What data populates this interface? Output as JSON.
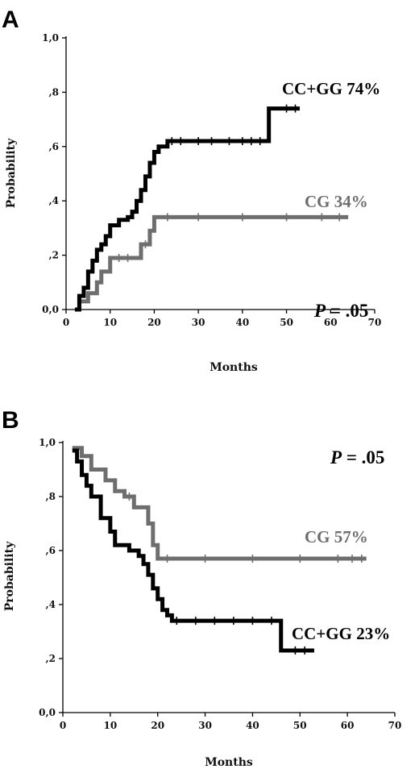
{
  "chart_data": [
    {
      "panel": "A",
      "type": "line",
      "xlabel": "Months",
      "ylabel": "Probability",
      "xlim": [
        0,
        70
      ],
      "ylim": [
        0,
        1.0
      ],
      "x_ticks": [
        "0",
        "10",
        "20",
        "30",
        "40",
        "50",
        "60",
        "70"
      ],
      "y_ticks": [
        "0,0",
        ",2",
        ",4",
        ",6",
        ",8",
        "1,0"
      ],
      "annotation": {
        "p_symbol": "P",
        "p_value": " = .05"
      },
      "series": [
        {
          "name": "CC+GG 74%",
          "color": "#000000",
          "x": [
            2,
            3,
            4,
            5,
            6,
            7,
            8,
            9,
            10,
            12,
            14,
            15,
            16,
            17,
            18,
            19,
            20,
            21,
            23,
            46,
            47,
            53
          ],
          "y": [
            0,
            0.05,
            0.08,
            0.14,
            0.18,
            0.22,
            0.24,
            0.27,
            0.31,
            0.33,
            0.34,
            0.36,
            0.4,
            0.44,
            0.49,
            0.54,
            0.58,
            0.6,
            0.62,
            0.74,
            0.74,
            0.74
          ],
          "censor_x": [
            24,
            26,
            30,
            33,
            37,
            40,
            42,
            44,
            50,
            52
          ]
        },
        {
          "name": "CG 34%",
          "color": "#6e6e6e",
          "x": [
            2,
            3,
            5,
            7,
            8,
            10,
            16,
            17,
            19,
            20,
            64
          ],
          "y": [
            0,
            0.03,
            0.06,
            0.1,
            0.14,
            0.19,
            0.19,
            0.24,
            0.29,
            0.34,
            0.34
          ],
          "censor_x": [
            12,
            14,
            18,
            23,
            30,
            40,
            50,
            58,
            62
          ]
        }
      ]
    },
    {
      "panel": "B",
      "type": "line",
      "xlabel": "Months",
      "ylabel": "Probability",
      "xlim": [
        0,
        70
      ],
      "ylim": [
        0,
        1.0
      ],
      "x_ticks": [
        "0",
        "10",
        "20",
        "30",
        "40",
        "50",
        "60",
        "70"
      ],
      "y_ticks": [
        "0,0",
        ",2",
        ",4",
        ",6",
        ",8",
        "1,0"
      ],
      "annotation": {
        "p_symbol": "P",
        "p_value": " = .05"
      },
      "series": [
        {
          "name": "CC+GG 23%",
          "color": "#000000",
          "x": [
            2,
            3,
            4,
            5,
            6,
            8,
            10,
            11,
            14,
            16,
            17,
            18,
            19,
            20,
            21,
            22,
            23,
            46,
            47,
            53
          ],
          "y": [
            0.97,
            0.93,
            0.88,
            0.84,
            0.8,
            0.72,
            0.67,
            0.62,
            0.6,
            0.58,
            0.55,
            0.51,
            0.46,
            0.42,
            0.38,
            0.36,
            0.34,
            0.23,
            0.23,
            0.23
          ],
          "censor_x": [
            24,
            28,
            32,
            36,
            40,
            44,
            49,
            51
          ]
        },
        {
          "name": "CG 57%",
          "color": "#6e6e6e",
          "x": [
            2,
            4,
            6,
            9,
            11,
            13,
            15,
            17,
            18,
            19,
            20,
            64
          ],
          "y": [
            0.98,
            0.95,
            0.9,
            0.86,
            0.82,
            0.8,
            0.76,
            0.76,
            0.7,
            0.62,
            0.57,
            0.57
          ],
          "censor_x": [
            14,
            22,
            30,
            40,
            50,
            58,
            61,
            63
          ]
        }
      ]
    }
  ]
}
